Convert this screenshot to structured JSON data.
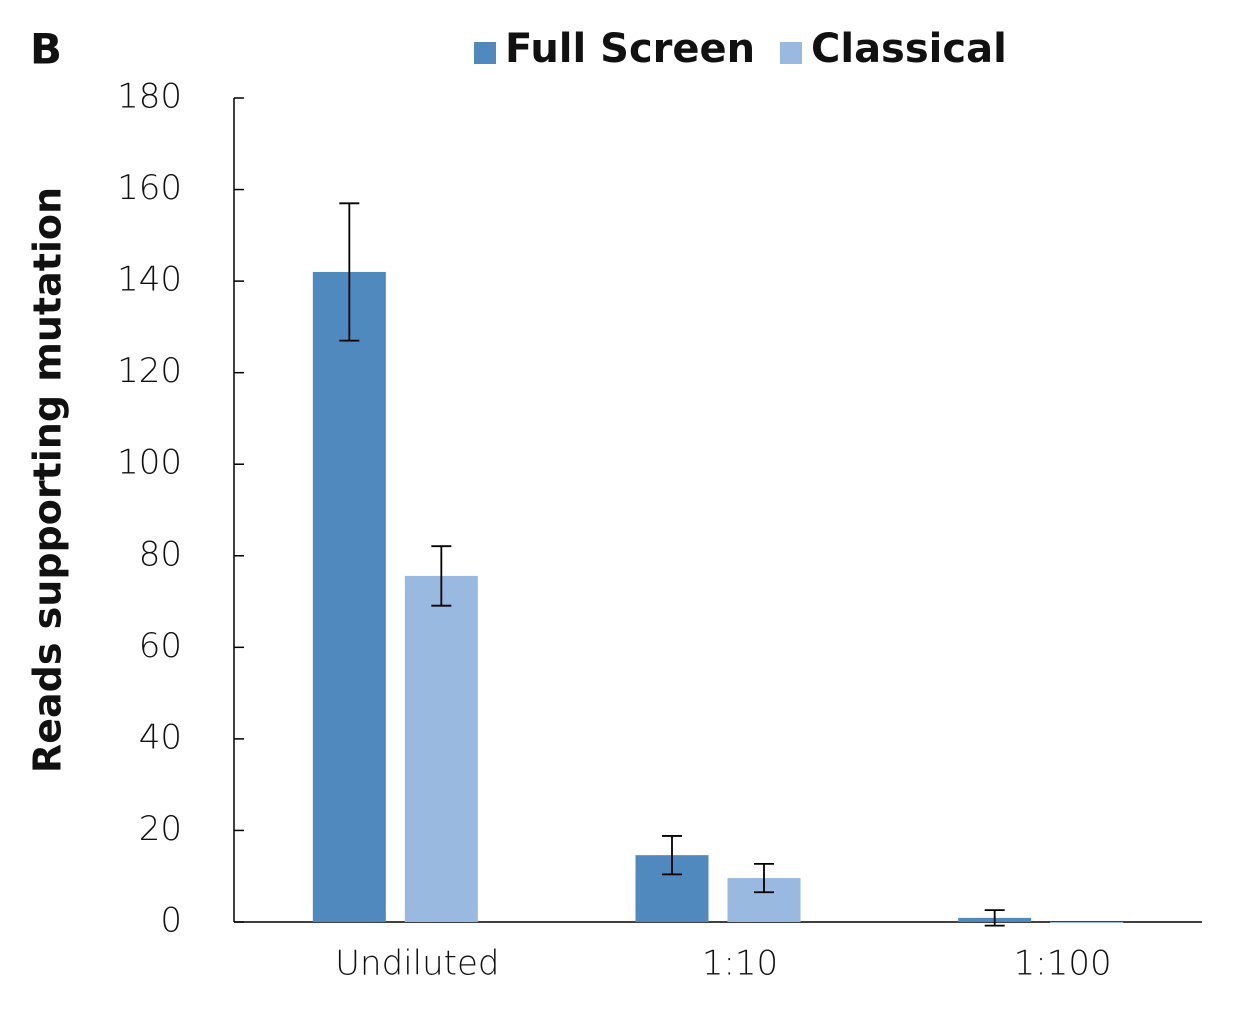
{
  "panel_label": "B",
  "chart_data": {
    "type": "bar",
    "y_label": "Reads supporting mutation",
    "categories": [
      "Undiluted",
      "1:10",
      "1:100"
    ],
    "series": [
      {
        "name": "Full Screen",
        "color": "#4f89bd",
        "values": [
          142,
          14.6,
          0.9
        ],
        "errors": [
          15,
          4.2,
          1.7
        ]
      },
      {
        "name": "Classical",
        "color": "#9ab9e0",
        "values": [
          75.6,
          9.6,
          0
        ],
        "errors": [
          6.5,
          3.1,
          0
        ]
      }
    ],
    "ylim": [
      0,
      180
    ],
    "yticks": [
      0,
      20,
      40,
      60,
      80,
      100,
      120,
      140,
      160,
      180
    ],
    "legend": "top"
  }
}
